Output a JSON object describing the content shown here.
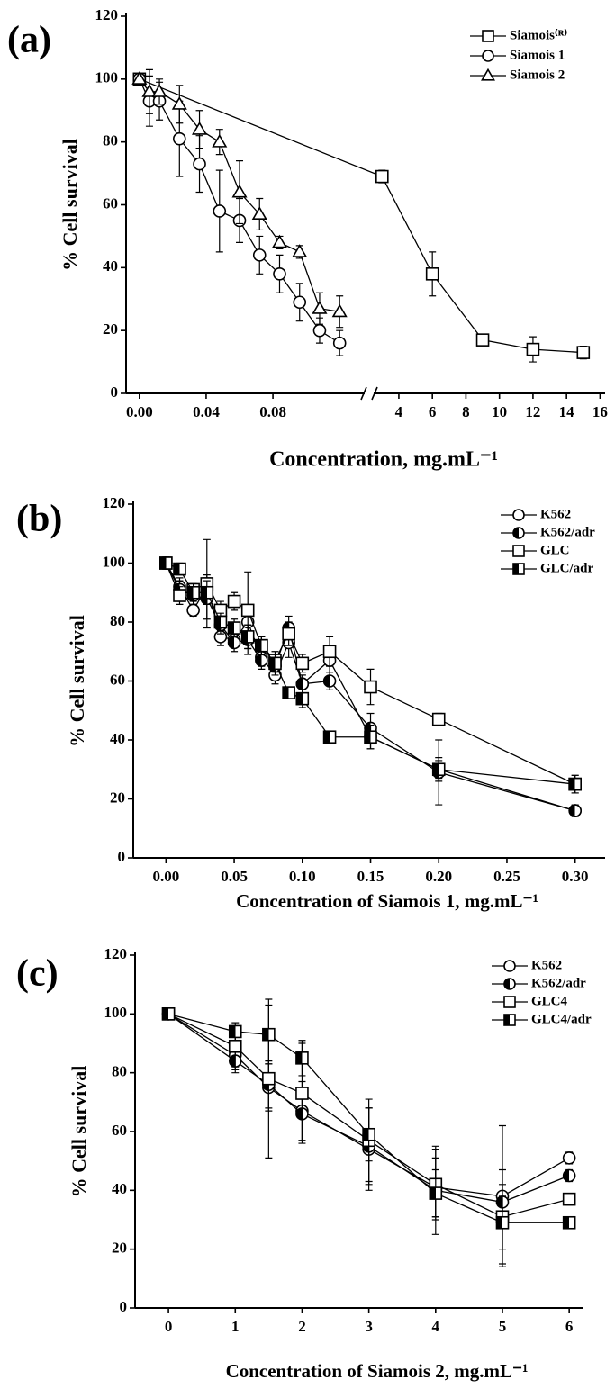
{
  "chart_data": [
    {
      "type": "line",
      "panel_label": "(a)",
      "x_label": "Concentration, mg.mL⁻¹",
      "y_label": "% Cell survival",
      "xlim": [
        -0.008,
        16.3
      ],
      "xbreak": [
        0.135,
        2.5
      ],
      "ylim": [
        0,
        120
      ],
      "xticks": [
        {
          "value": 0,
          "label": "0.00"
        },
        {
          "value": 0.04,
          "label": "0.04"
        },
        {
          "value": 0.08,
          "label": "0.08"
        },
        4,
        6,
        8,
        10,
        12,
        14,
        16
      ],
      "yticks": [
        0,
        20,
        40,
        60,
        80,
        100,
        120
      ],
      "legend": "upper right",
      "series": [
        {
          "name": "Siamois⁽ᴿ⁾",
          "marker": "square",
          "fill": "open",
          "color": "#000000",
          "x": [
            0,
            3,
            6,
            9,
            12,
            15
          ],
          "values": [
            100,
            69,
            38,
            17,
            14,
            13
          ],
          "errors": [
            0,
            2,
            7,
            1,
            4,
            2
          ]
        },
        {
          "name": "Siamois 1",
          "marker": "circle",
          "fill": "open",
          "color": "#000000",
          "x": [
            0,
            0.006,
            0.012,
            0.024,
            0.036,
            0.048,
            0.06,
            0.072,
            0.084,
            0.096,
            0.108,
            0.12
          ],
          "values": [
            100,
            93,
            93,
            81,
            73,
            58,
            55,
            44,
            38,
            29,
            20,
            16
          ],
          "errors": [
            0,
            8,
            6,
            12,
            9,
            13,
            7,
            6,
            6,
            6,
            4,
            4
          ]
        },
        {
          "name": "Siamois 2",
          "marker": "triangle",
          "fill": "open",
          "color": "#000000",
          "x": [
            0,
            0.006,
            0.012,
            0.024,
            0.036,
            0.048,
            0.06,
            0.072,
            0.084,
            0.096,
            0.108,
            0.12
          ],
          "values": [
            100,
            96,
            96,
            92,
            84,
            80,
            64,
            57,
            48,
            45,
            27,
            26
          ],
          "errors": [
            0,
            7,
            4,
            6,
            6,
            4,
            10,
            5,
            2,
            2,
            5,
            5
          ]
        }
      ]
    },
    {
      "type": "line",
      "panel_label": "(b)",
      "x_label": "Concentration of Siamois 1, mg.mL⁻¹",
      "y_label": "% Cell survival",
      "xlim": [
        -0.024,
        0.322
      ],
      "ylim": [
        0,
        120
      ],
      "xticks": [
        {
          "value": 0,
          "label": "0.00"
        },
        {
          "value": 0.05,
          "label": "0.05"
        },
        {
          "value": 0.1,
          "label": "0.10"
        },
        {
          "value": 0.15,
          "label": "0.15"
        },
        {
          "value": 0.2,
          "label": "0.20"
        },
        {
          "value": 0.25,
          "label": "0.25"
        },
        {
          "value": 0.3,
          "label": "0.30"
        }
      ],
      "yticks": [
        0,
        20,
        40,
        60,
        80,
        100,
        120
      ],
      "legend": "upper right",
      "x": [
        0,
        0.01,
        0.02,
        0.03,
        0.04,
        0.05,
        0.06,
        0.07,
        0.08,
        0.09,
        0.1,
        0.12,
        0.15,
        0.2,
        0.3
      ],
      "series": [
        {
          "name": "K562",
          "marker": "circle",
          "fill": "open",
          "color": "#000000",
          "values": [
            100,
            92,
            84,
            92,
            75,
            74,
            80,
            68,
            62,
            73,
            59,
            67,
            41,
            30,
            16
          ],
          "errors": [
            2,
            3,
            2,
            4,
            3,
            2,
            5,
            3,
            3,
            5,
            3,
            4,
            4,
            4,
            1
          ]
        },
        {
          "name": "K562/adr",
          "marker": "circle",
          "fill": "half",
          "color": "#000000",
          "values": [
            100,
            91,
            89,
            88,
            79,
            73,
            74,
            67,
            65,
            78,
            59,
            60,
            44,
            29,
            16
          ],
          "errors": [
            2,
            3,
            3,
            7,
            3,
            3,
            5,
            3,
            3,
            4,
            3,
            3,
            5,
            11,
            2
          ]
        },
        {
          "name": "GLC",
          "marker": "square",
          "fill": "open",
          "color": "#000000",
          "values": [
            100,
            89,
            91,
            93,
            84,
            87,
            84,
            72,
            67,
            76,
            66,
            70,
            58,
            47,
            25
          ],
          "errors": [
            2,
            3,
            2,
            15,
            3,
            3,
            13,
            3,
            3,
            4,
            3,
            5,
            6,
            2,
            3
          ]
        },
        {
          "name": "GLC/adr",
          "marker": "square",
          "fill": "half",
          "color": "#000000",
          "values": [
            100,
            98,
            90,
            90,
            80,
            78,
            75,
            72,
            66,
            56,
            54,
            41,
            41,
            30,
            25
          ],
          "errors": [
            2,
            2,
            3,
            4,
            3,
            3,
            4,
            3,
            3,
            2,
            3,
            2,
            4,
            3,
            3
          ]
        }
      ]
    },
    {
      "type": "line",
      "panel_label": "(c)",
      "x_label": "Concentration of Siamois 2, mg.mL⁻¹",
      "y_label": "% Cell survival",
      "xlim": [
        -0.5,
        6.2
      ],
      "ylim": [
        0,
        120
      ],
      "xticks": [
        0,
        1,
        2,
        3,
        4,
        5,
        6
      ],
      "yticks": [
        0,
        20,
        40,
        60,
        80,
        100,
        120
      ],
      "legend": "upper right",
      "x": [
        0,
        1,
        1.5,
        2,
        3,
        4,
        5,
        6
      ],
      "series": [
        {
          "name": "K562",
          "marker": "circle",
          "fill": "open",
          "color": "#000000",
          "values": [
            100,
            86,
            75,
            67,
            54,
            41,
            38,
            51
          ],
          "errors": [
            1,
            5,
            8,
            10,
            14,
            10,
            24,
            2
          ]
        },
        {
          "name": "K562/adr",
          "marker": "circle",
          "fill": "half",
          "color": "#000000",
          "values": [
            100,
            84,
            76,
            66,
            55,
            40,
            36,
            45
          ],
          "errors": [
            1,
            4,
            8,
            9,
            13,
            15,
            6,
            2
          ]
        },
        {
          "name": "GLC4",
          "marker": "square",
          "fill": "open",
          "color": "#000000",
          "values": [
            100,
            89,
            78,
            73,
            57,
            42,
            31,
            37
          ],
          "errors": [
            1,
            7,
            27,
            17,
            14,
            12,
            16,
            2
          ]
        },
        {
          "name": "GLC4/adr",
          "marker": "square",
          "fill": "half",
          "color": "#000000",
          "values": [
            100,
            94,
            93,
            85,
            59,
            39,
            29,
            29
          ],
          "errors": [
            1,
            3,
            10,
            6,
            9,
            8,
            9,
            2
          ]
        }
      ]
    }
  ]
}
